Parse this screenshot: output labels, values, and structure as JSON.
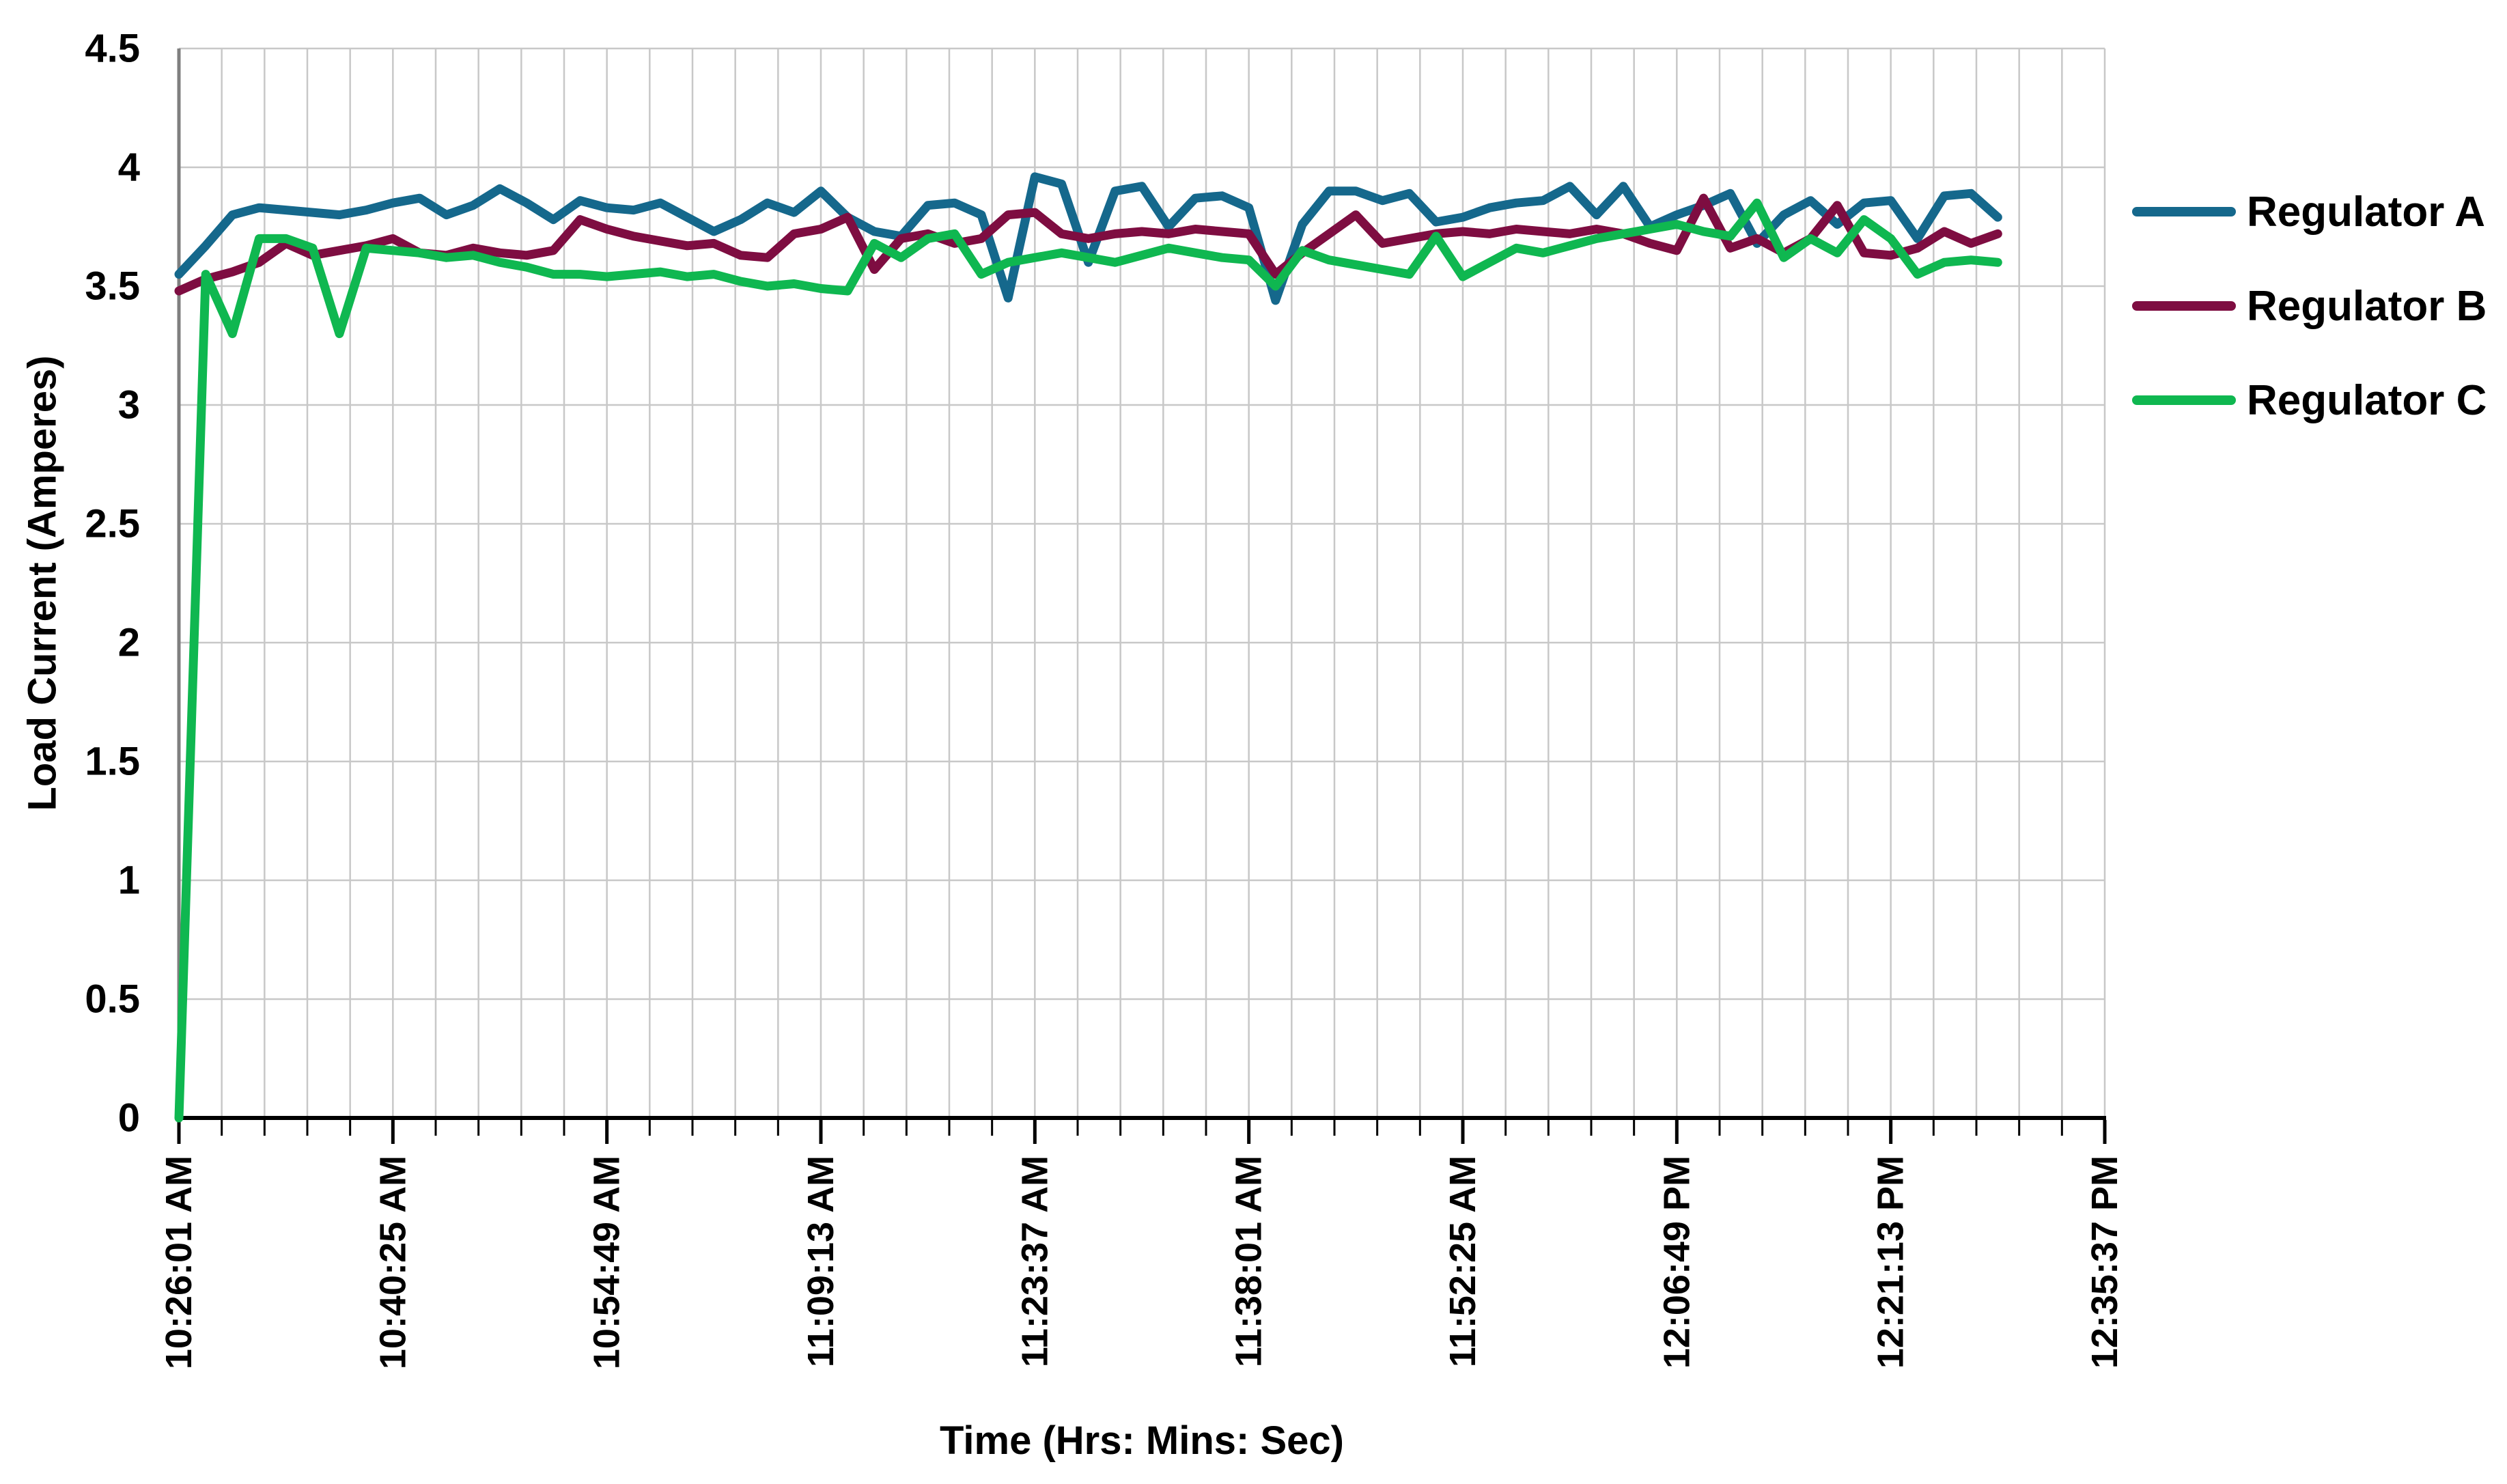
{
  "chart_data": {
    "type": "line",
    "title": "",
    "xlabel": "Time (Hrs: Mins: Sec)",
    "ylabel": "Load Current (Amperes)",
    "x_axis": {
      "tick_labels": [
        "10:26:01 AM",
        "10:40:25 AM",
        "10:54:49 AM",
        "11:09:13 AM",
        "11:23:37 AM",
        "11:38:01 AM",
        "11:52:25 AM",
        "12:06:49 PM",
        "12:21:13 PM",
        "12:35:37 PM"
      ],
      "label_interval_seconds": 864,
      "sample_interval_seconds": 108,
      "gridline_interval_seconds": 172.8,
      "axis_total_seconds": 7776
    },
    "y_axis": {
      "min": 0,
      "max": 4.5,
      "step": 0.5,
      "tick_labels": [
        "0",
        "0.5",
        "1",
        "1.5",
        "2",
        "2.5",
        "3",
        "3.5",
        "4",
        "4.5"
      ]
    },
    "grid": true,
    "legend_position": "right",
    "series": [
      {
        "name": "Regulator A",
        "color": "#15688C",
        "values": [
          3.55,
          3.67,
          3.8,
          3.83,
          3.82,
          3.81,
          3.8,
          3.82,
          3.85,
          3.87,
          3.8,
          3.84,
          3.91,
          3.85,
          3.78,
          3.86,
          3.83,
          3.82,
          3.85,
          3.79,
          3.73,
          3.78,
          3.85,
          3.81,
          3.9,
          3.79,
          3.73,
          3.71,
          3.84,
          3.85,
          3.8,
          3.45,
          3.96,
          3.93,
          3.6,
          3.9,
          3.92,
          3.75,
          3.87,
          3.88,
          3.83,
          3.44,
          3.76,
          3.9,
          3.9,
          3.86,
          3.89,
          3.77,
          3.79,
          3.83,
          3.85,
          3.86,
          3.92,
          3.8,
          3.92,
          3.75,
          3.8,
          3.84,
          3.89,
          3.68,
          3.8,
          3.86,
          3.76,
          3.85,
          3.86,
          3.7,
          3.88,
          3.89,
          3.79
        ]
      },
      {
        "name": "Regulator B",
        "color": "#7E0D41",
        "values": [
          3.48,
          3.53,
          3.56,
          3.6,
          3.68,
          3.63,
          3.65,
          3.67,
          3.7,
          3.64,
          3.63,
          3.66,
          3.64,
          3.63,
          3.65,
          3.78,
          3.74,
          3.71,
          3.69,
          3.67,
          3.68,
          3.63,
          3.62,
          3.72,
          3.74,
          3.79,
          3.57,
          3.7,
          3.72,
          3.68,
          3.7,
          3.8,
          3.81,
          3.72,
          3.7,
          3.72,
          3.73,
          3.72,
          3.74,
          3.73,
          3.72,
          3.55,
          3.64,
          3.72,
          3.8,
          3.68,
          3.7,
          3.72,
          3.73,
          3.72,
          3.74,
          3.73,
          3.72,
          3.74,
          3.72,
          3.68,
          3.65,
          3.87,
          3.66,
          3.7,
          3.64,
          3.7,
          3.84,
          3.64,
          3.63,
          3.66,
          3.73,
          3.68,
          3.72
        ]
      },
      {
        "name": "Regulator C",
        "color": "#0FB750",
        "values": [
          0,
          3.55,
          3.3,
          3.7,
          3.7,
          3.66,
          3.3,
          3.66,
          3.65,
          3.64,
          3.62,
          3.63,
          3.6,
          3.58,
          3.55,
          3.55,
          3.54,
          3.55,
          3.56,
          3.54,
          3.55,
          3.52,
          3.5,
          3.51,
          3.49,
          3.48,
          3.68,
          3.62,
          3.7,
          3.72,
          3.55,
          3.6,
          3.62,
          3.64,
          3.62,
          3.6,
          3.63,
          3.66,
          3.64,
          3.62,
          3.61,
          3.5,
          3.65,
          3.61,
          3.59,
          3.57,
          3.55,
          3.71,
          3.54,
          3.6,
          3.66,
          3.64,
          3.67,
          3.7,
          3.72,
          3.74,
          3.76,
          3.73,
          3.71,
          3.85,
          3.62,
          3.7,
          3.64,
          3.78,
          3.7,
          3.55,
          3.6,
          3.61,
          3.6
        ]
      }
    ]
  },
  "styles": {
    "background": "#FFFFFF",
    "gridline_color": "#C8C8C8",
    "axis_line_color": "#000000",
    "y_axis_line_color": "#7F7F7F",
    "text_color": "#000000"
  }
}
